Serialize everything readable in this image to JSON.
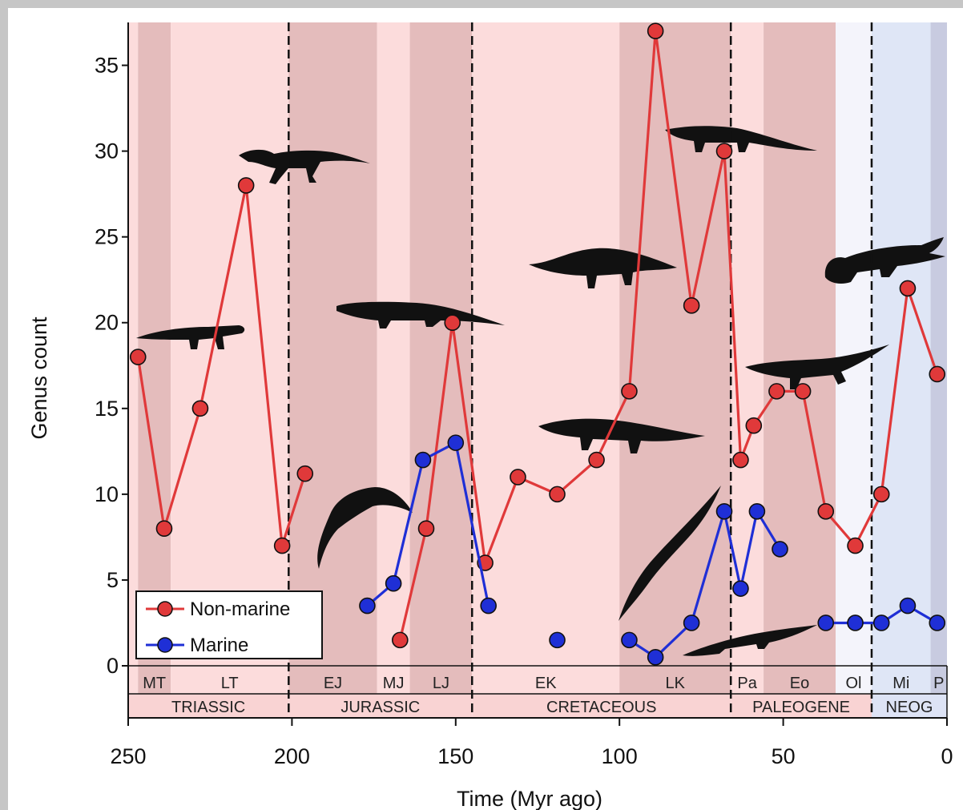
{
  "chart_data": {
    "type": "line",
    "xlabel": "Time (Myr ago)",
    "ylabel": "Genus count",
    "xlim": [
      250,
      0
    ],
    "ylim": [
      0,
      37.5
    ],
    "x_ticks": [
      250,
      200,
      150,
      100,
      50,
      0
    ],
    "y_ticks": [
      0,
      5,
      10,
      15,
      20,
      25,
      30,
      35
    ],
    "legend_position": "bottom-left",
    "series": [
      {
        "name": "Non-marine",
        "color": "#e0393a",
        "segments": [
          [
            [
              247,
              18
            ],
            [
              239,
              8
            ],
            [
              228,
              15
            ],
            [
              214,
              28
            ],
            [
              203,
              7
            ],
            [
              196,
              11.2
            ]
          ],
          [
            [
              167,
              1.5
            ],
            [
              159,
              8
            ],
            [
              151,
              20
            ],
            [
              141,
              6
            ],
            [
              131,
              11
            ],
            [
              119,
              10
            ],
            [
              107,
              12
            ],
            [
              97,
              16
            ],
            [
              89,
              37
            ],
            [
              78,
              21
            ],
            [
              68,
              30
            ],
            [
              63,
              12
            ],
            [
              59,
              14
            ],
            [
              52,
              16
            ],
            [
              44,
              16
            ],
            [
              37,
              9
            ],
            [
              28,
              7
            ],
            [
              20,
              10
            ],
            [
              12,
              22
            ],
            [
              3,
              17
            ]
          ]
        ]
      },
      {
        "name": "Marine",
        "color": "#1f2fd6",
        "segments": [
          [
            [
              177,
              3.5
            ],
            [
              169,
              4.8
            ],
            [
              160,
              12
            ],
            [
              150,
              13
            ],
            [
              140,
              3.5
            ]
          ],
          [
            [
              119,
              1.5
            ]
          ],
          [
            [
              97,
              1.5
            ],
            [
              89,
              0.5
            ],
            [
              78,
              2.5
            ],
            [
              68,
              9
            ],
            [
              63,
              4.5
            ],
            [
              58,
              9
            ],
            [
              51,
              6.8
            ]
          ],
          [
            [
              37,
              2.5
            ],
            [
              28,
              2.5
            ],
            [
              20,
              2.5
            ],
            [
              12,
              3.5
            ],
            [
              3,
              2.5
            ]
          ]
        ]
      }
    ],
    "stage_bands": [
      {
        "label": "MT",
        "start": 247,
        "end": 237,
        "shade": "dark"
      },
      {
        "label": "LT",
        "start": 237,
        "end": 201,
        "shade": "light"
      },
      {
        "label": "EJ",
        "start": 201,
        "end": 174,
        "shade": "dark"
      },
      {
        "label": "MJ",
        "start": 174,
        "end": 164,
        "shade": "light"
      },
      {
        "label": "LJ",
        "start": 164,
        "end": 145,
        "shade": "dark"
      },
      {
        "label": "EK",
        "start": 145,
        "end": 100,
        "shade": "light"
      },
      {
        "label": "LK",
        "start": 100,
        "end": 66,
        "shade": "dark"
      },
      {
        "label": "Pa",
        "start": 66,
        "end": 56,
        "shade": "light"
      },
      {
        "label": "Eo",
        "start": 56,
        "end": 34,
        "shade": "dark"
      },
      {
        "label": "Ol",
        "start": 34,
        "end": 23,
        "shade": "white"
      },
      {
        "label": "Mi",
        "start": 23,
        "end": 5,
        "shade": "blue"
      },
      {
        "label": "P",
        "start": 5,
        "end": 0,
        "shade": "bluedark"
      }
    ],
    "periods": [
      {
        "label": "TRIASSIC",
        "start": 250,
        "end": 201,
        "color": "#f9d3d3"
      },
      {
        "label": "JURASSIC",
        "start": 201,
        "end": 145,
        "color": "#f9d3d3"
      },
      {
        "label": "CRETACEOUS",
        "start": 145,
        "end": 66,
        "color": "#f9d3d3"
      },
      {
        "label": "PALEOGENE",
        "start": 66,
        "end": 23,
        "color": "#f9d3d3"
      },
      {
        "label": "NEOG",
        "start": 23,
        "end": 0,
        "color": "#dde3f5"
      }
    ],
    "boundaries": [
      201,
      145,
      66,
      23
    ]
  },
  "colors": {
    "light": "#fcdcdc",
    "dark": "#e4bcbc",
    "white": "#f4f4fb",
    "blue": "#dfe6f6",
    "bluedark": "#c8cbe0"
  },
  "silhouettes": [
    {
      "icon": "crocodylomorph-silhouette-icon"
    },
    {
      "icon": "crocodylomorph-silhouette-icon"
    },
    {
      "icon": "crocodylomorph-silhouette-icon"
    },
    {
      "icon": "thalattosuchian-silhouette-icon"
    },
    {
      "icon": "crocodylomorph-silhouette-icon"
    },
    {
      "icon": "crocodylomorph-silhouette-icon"
    },
    {
      "icon": "crocodylomorph-silhouette-icon"
    },
    {
      "icon": "crocodylomorph-silhouette-icon"
    },
    {
      "icon": "crocodylomorph-silhouette-icon"
    },
    {
      "icon": "crocodylomorph-silhouette-icon"
    },
    {
      "icon": "crocodile-silhouette-icon"
    }
  ]
}
